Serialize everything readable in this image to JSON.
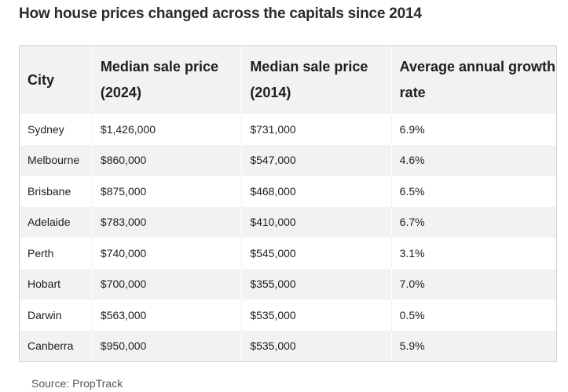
{
  "title": "How house prices changed across the capitals since 2014",
  "table": {
    "headers": [
      "City",
      "Median sale price (2024)",
      "Median sale price (2014)",
      "Average annual growth rate"
    ],
    "rows": [
      [
        "Sydney",
        "$1,426,000",
        "$731,000",
        "6.9%"
      ],
      [
        "Melbourne",
        "$860,000",
        "$547,000",
        "4.6%"
      ],
      [
        "Brisbane",
        "$875,000",
        "$468,000",
        "6.5%"
      ],
      [
        "Adelaide",
        "$783,000",
        "$410,000",
        "6.7%"
      ],
      [
        "Perth",
        "$740,000",
        "$545,000",
        "3.1%"
      ],
      [
        "Hobart",
        "$700,000",
        "$355,000",
        "7.0%"
      ],
      [
        "Darwin",
        "$563,000",
        "$535,000",
        "0.5%"
      ],
      [
        "Canberra",
        "$950,000",
        "$535,000",
        "5.9%"
      ]
    ]
  },
  "source": "Source: PropTrack"
}
